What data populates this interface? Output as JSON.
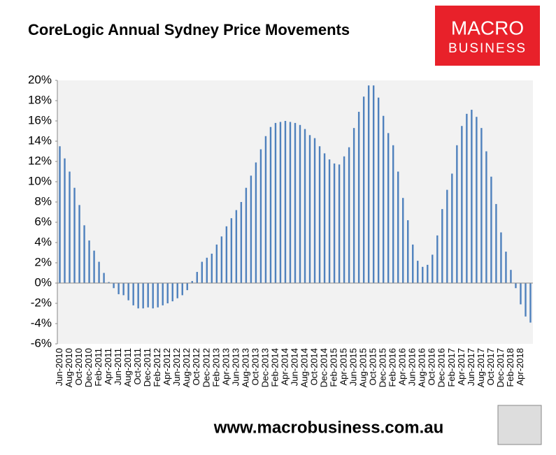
{
  "chart_data": {
    "type": "bar",
    "title": "CoreLogic Annual Sydney Price Movements",
    "categories": [
      "Jun-2010",
      null,
      "Aug-2010",
      null,
      "Oct-2010",
      null,
      "Dec-2010",
      null,
      "Feb-2011",
      null,
      "Apr-2011",
      null,
      "Jun-2011",
      null,
      "Aug-2011",
      null,
      "Oct-2011",
      null,
      "Dec-2011",
      null,
      "Feb-2012",
      null,
      "Apr-2012",
      null,
      "Jun-2012",
      null,
      "Aug-2012",
      null,
      "Oct-2012",
      null,
      "Dec-2012",
      null,
      "Feb-2013",
      null,
      "Apr-2013",
      null,
      "Jun-2013",
      null,
      "Aug-2013",
      null,
      "Oct-2013",
      null,
      "Dec-2013",
      null,
      "Feb-2014",
      null,
      "Apr-2014",
      null,
      "Jun-2014",
      null,
      "Aug-2014",
      null,
      "Oct-2014",
      null,
      "Dec-2014",
      null,
      "Feb-2015",
      null,
      "Apr-2015",
      null,
      "Jun-2015",
      null,
      "Aug-2015",
      null,
      "Oct-2015",
      null,
      "Dec-2015",
      null,
      "Feb-2016",
      null,
      "Apr-2016",
      null,
      "Jun-2016",
      null,
      "Aug-2016",
      null,
      "Oct-2016",
      null,
      "Dec-2016",
      null,
      "Feb-2017",
      null,
      "Apr-2017",
      null,
      "Jun-2017",
      null,
      "Aug-2017",
      null,
      "Oct-2017",
      null,
      "Dec-2017",
      null,
      "Feb-2018",
      null,
      "Apr-2018",
      null,
      null
    ],
    "values": [
      13.5,
      12.3,
      11.0,
      9.4,
      7.7,
      5.7,
      4.2,
      3.2,
      2.1,
      1.0,
      0.1,
      -0.5,
      -1.1,
      -1.2,
      -1.7,
      -2.2,
      -2.5,
      -2.5,
      -2.4,
      -2.5,
      -2.4,
      -2.2,
      -2.0,
      -1.8,
      -1.5,
      -1.2,
      -0.7,
      0.2,
      1.1,
      2.1,
      2.5,
      2.9,
      3.8,
      4.6,
      5.6,
      6.4,
      7.2,
      8.0,
      9.4,
      10.6,
      11.9,
      13.2,
      14.5,
      15.4,
      15.8,
      15.9,
      16.0,
      15.9,
      15.8,
      15.6,
      15.2,
      14.6,
      14.3,
      13.5,
      12.8,
      12.2,
      11.8,
      11.7,
      12.5,
      13.4,
      15.3,
      16.9,
      18.4,
      19.5,
      19.5,
      18.3,
      16.5,
      14.8,
      13.6,
      11.0,
      8.4,
      6.2,
      3.8,
      2.2,
      1.6,
      1.8,
      2.8,
      4.7,
      7.3,
      9.2,
      10.8,
      13.6,
      15.5,
      16.7,
      17.1,
      16.4,
      15.3,
      13.0,
      10.5,
      7.8,
      5.0,
      3.1,
      1.3,
      -0.5,
      -2.1,
      -3.3,
      -3.9
    ],
    "color": "#4f81bd",
    "ylim": [
      -6,
      20
    ],
    "yticks": [
      {
        "value": -6,
        "label": "-6%"
      },
      {
        "value": -4,
        "label": "-4%"
      },
      {
        "value": -2,
        "label": "-2%"
      },
      {
        "value": 0,
        "label": "0%"
      },
      {
        "value": 2,
        "label": "2%"
      },
      {
        "value": 4,
        "label": "4%"
      },
      {
        "value": 6,
        "label": "6%"
      },
      {
        "value": 8,
        "label": "8%"
      },
      {
        "value": 10,
        "label": "10%"
      },
      {
        "value": 12,
        "label": "12%"
      },
      {
        "value": 14,
        "label": "14%"
      },
      {
        "value": 16,
        "label": "16%"
      },
      {
        "value": 18,
        "label": "18%"
      },
      {
        "value": 20,
        "label": "20%"
      }
    ]
  },
  "logo": {
    "line1": "MACRO",
    "line2": "BUSINESS"
  },
  "footer": "www.macrobusiness.com.au"
}
